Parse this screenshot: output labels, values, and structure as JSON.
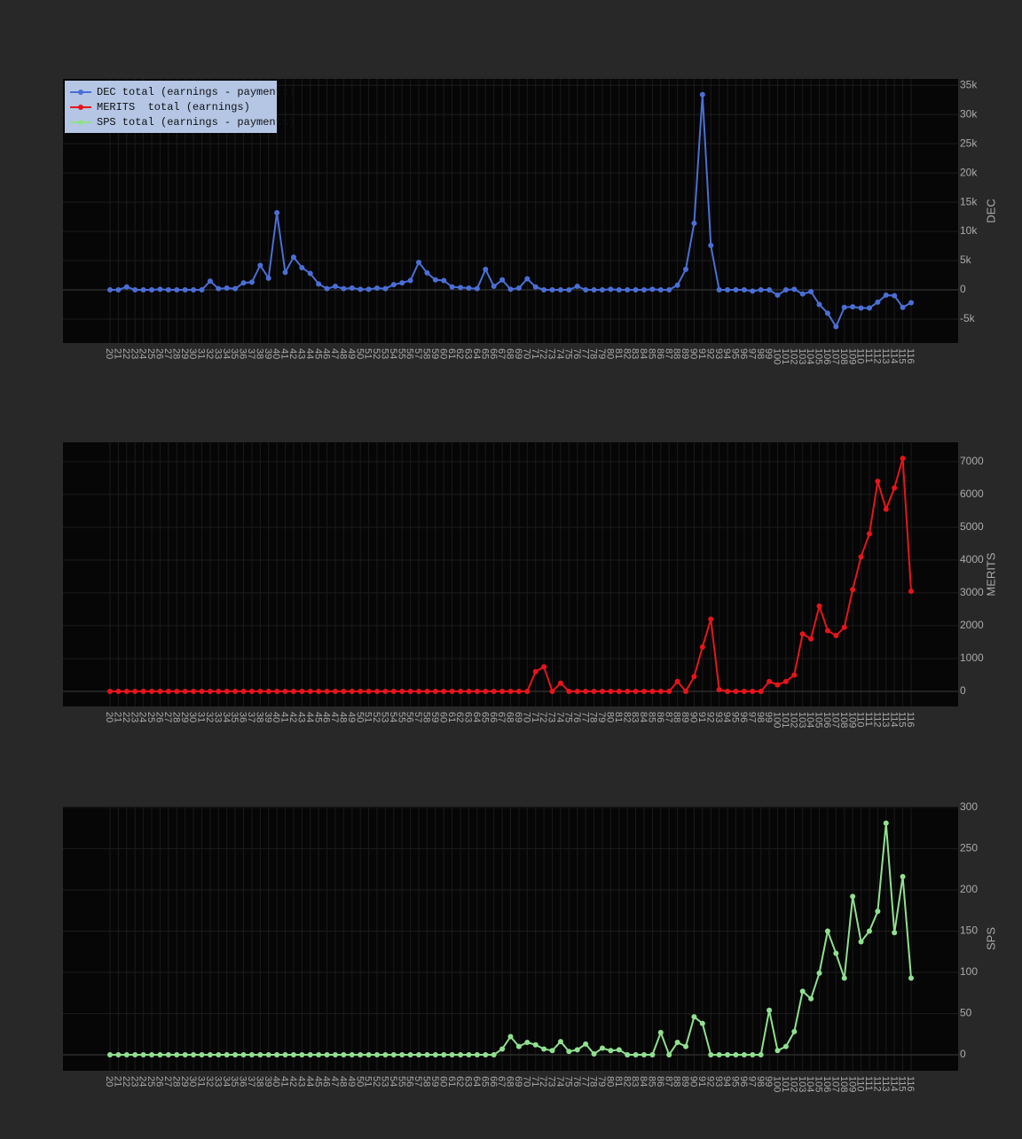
{
  "chart_data": [
    {
      "type": "line",
      "categories": [
        20,
        21,
        22,
        23,
        24,
        25,
        26,
        27,
        28,
        29,
        30,
        31,
        32,
        33,
        34,
        35,
        36,
        37,
        38,
        39,
        40,
        41,
        42,
        43,
        44,
        45,
        46,
        47,
        48,
        49,
        50,
        51,
        52,
        53,
        54,
        55,
        56,
        57,
        58,
        59,
        60,
        61,
        62,
        63,
        64,
        65,
        66,
        67,
        68,
        69,
        70,
        71,
        72,
        73,
        74,
        75,
        76,
        77,
        78,
        79,
        80,
        81,
        82,
        83,
        84,
        85,
        86,
        87,
        88,
        89,
        90,
        91,
        92,
        93,
        94,
        95,
        96,
        97,
        98,
        99,
        100,
        101,
        102,
        103,
        104,
        105,
        106,
        107,
        108,
        109,
        110,
        111,
        112,
        113,
        114,
        115,
        116
      ],
      "series": [
        {
          "name": "DEC total (earnings - payments)",
          "color": "#4a6fd6",
          "values": [
            0,
            0,
            500,
            0,
            0,
            0,
            100,
            0,
            0,
            0,
            0,
            0,
            1500,
            200,
            300,
            200,
            1200,
            1300,
            4200,
            2000,
            13200,
            3000,
            5600,
            3800,
            2800,
            1000,
            200,
            600,
            200,
            300,
            100,
            100,
            300,
            200,
            900,
            1200,
            1600,
            4700,
            2900,
            1700,
            1600,
            500,
            400,
            300,
            200,
            3500,
            600,
            1700,
            100,
            300,
            1900,
            500,
            0,
            0,
            0,
            0,
            600,
            0,
            0,
            0,
            100,
            0,
            0,
            0,
            0,
            100,
            0,
            0,
            800,
            3500,
            11400,
            33400,
            7600,
            0,
            0,
            0,
            0,
            -200,
            0,
            0,
            -900,
            0,
            100,
            -700,
            -300,
            -2500,
            -4000,
            -6300,
            -3000,
            -2900,
            -3100,
            -3100,
            -2100,
            -900,
            -1000,
            -3000,
            -2200
          ]
        }
      ],
      "ylabel": "DEC",
      "ylim": [
        -9100,
        36100
      ],
      "yticks": [
        {
          "value": -5000,
          "label": "-5k"
        },
        0,
        {
          "value": 5000,
          "label": "5k"
        },
        {
          "value": 10000,
          "label": "10k"
        },
        {
          "value": 15000,
          "label": "15k"
        },
        {
          "value": 20000,
          "label": "20k"
        },
        {
          "value": 25000,
          "label": "25k"
        },
        {
          "value": 30000,
          "label": "30k"
        },
        {
          "value": 35000,
          "label": "35k"
        }
      ],
      "legend": "top-left",
      "grid": true
    },
    {
      "type": "line",
      "categories": [
        20,
        21,
        22,
        23,
        24,
        25,
        26,
        27,
        28,
        29,
        30,
        31,
        32,
        33,
        34,
        35,
        36,
        37,
        38,
        39,
        40,
        41,
        42,
        43,
        44,
        45,
        46,
        47,
        48,
        49,
        50,
        51,
        52,
        53,
        54,
        55,
        56,
        57,
        58,
        59,
        60,
        61,
        62,
        63,
        64,
        65,
        66,
        67,
        68,
        69,
        70,
        71,
        72,
        73,
        74,
        75,
        76,
        77,
        78,
        79,
        80,
        81,
        82,
        83,
        84,
        85,
        86,
        87,
        88,
        89,
        90,
        91,
        92,
        93,
        94,
        95,
        96,
        97,
        98,
        99,
        100,
        101,
        102,
        103,
        104,
        105,
        106,
        107,
        108,
        109,
        110,
        111,
        112,
        113,
        114,
        115,
        116
      ],
      "series": [
        {
          "name": "MERITS  total (earnings)",
          "color": "#e8141c",
          "values": [
            0,
            0,
            0,
            0,
            0,
            0,
            0,
            0,
            0,
            0,
            0,
            0,
            0,
            0,
            0,
            0,
            0,
            0,
            0,
            0,
            0,
            0,
            0,
            0,
            0,
            0,
            0,
            0,
            0,
            0,
            0,
            0,
            0,
            0,
            0,
            0,
            0,
            0,
            0,
            0,
            0,
            0,
            0,
            0,
            0,
            0,
            0,
            0,
            0,
            0,
            0,
            600,
            750,
            0,
            250,
            0,
            0,
            0,
            0,
            0,
            0,
            0,
            0,
            0,
            0,
            0,
            0,
            0,
            300,
            0,
            450,
            1350,
            2200,
            50,
            0,
            0,
            0,
            0,
            0,
            300,
            200,
            300,
            500,
            1750,
            1600,
            2600,
            1850,
            1700,
            1950,
            3100,
            4100,
            4800,
            6400,
            5550,
            6200,
            7100,
            3050
          ]
        }
      ],
      "ylabel": "MERITS",
      "ylim": [
        -460,
        7590
      ],
      "yticks": [
        0,
        1000,
        2000,
        3000,
        4000,
        5000,
        6000,
        7000
      ],
      "grid": true
    },
    {
      "type": "line",
      "categories": [
        20,
        21,
        22,
        23,
        24,
        25,
        26,
        27,
        28,
        29,
        30,
        31,
        32,
        33,
        34,
        35,
        36,
        37,
        38,
        39,
        40,
        41,
        42,
        43,
        44,
        45,
        46,
        47,
        48,
        49,
        50,
        51,
        52,
        53,
        54,
        55,
        56,
        57,
        58,
        59,
        60,
        61,
        62,
        63,
        64,
        65,
        66,
        67,
        68,
        69,
        70,
        71,
        72,
        73,
        74,
        75,
        76,
        77,
        78,
        79,
        80,
        81,
        82,
        83,
        84,
        85,
        86,
        87,
        88,
        89,
        90,
        91,
        92,
        93,
        94,
        95,
        96,
        97,
        98,
        99,
        100,
        101,
        102,
        103,
        104,
        105,
        106,
        107,
        108,
        109,
        110,
        111,
        112,
        113,
        114,
        115,
        116
      ],
      "series": [
        {
          "name": "SPS total (earnings - payments)",
          "color": "#90e090",
          "values": [
            0,
            0,
            0,
            0,
            0,
            0,
            0,
            0,
            0,
            0,
            0,
            0,
            0,
            0,
            0,
            0,
            0,
            0,
            0,
            0,
            0,
            0,
            0,
            0,
            0,
            0,
            0,
            0,
            0,
            0,
            0,
            0,
            0,
            0,
            0,
            0,
            0,
            0,
            0,
            0,
            0,
            0,
            0,
            0,
            0,
            0,
            0,
            7,
            22,
            10,
            15,
            12,
            7,
            5,
            16,
            4,
            6,
            13,
            1,
            8,
            5,
            6,
            0,
            0,
            0,
            0,
            27,
            0,
            15,
            10,
            46,
            38,
            0,
            0,
            0,
            0,
            0,
            0,
            0,
            54,
            5,
            10,
            28,
            77,
            68,
            99,
            150,
            123,
            93,
            192,
            137,
            150,
            174,
            281,
            148,
            216,
            93
          ]
        }
      ],
      "ylabel": "SPS",
      "ylim": [
        -19.4,
        301
      ],
      "yticks": [
        0,
        50,
        100,
        150,
        200,
        250,
        300
      ],
      "grid": true
    }
  ]
}
